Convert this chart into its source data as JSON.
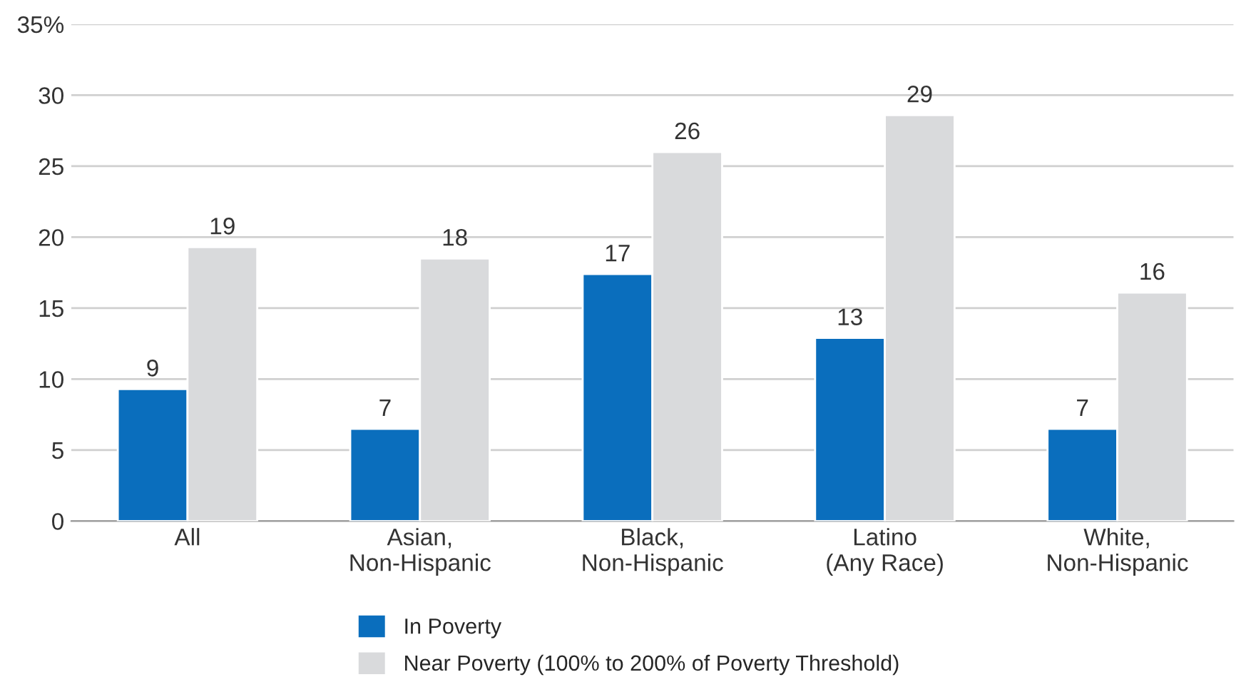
{
  "chart_data": {
    "type": "bar",
    "categories": [
      "All",
      "Asian,\nNon-Hispanic",
      "Black,\nNon-Hispanic",
      "Latino\n(Any Race)",
      "White,\nNon-Hispanic"
    ],
    "series": [
      {
        "name": "In Poverty",
        "color": "#0a6ebd",
        "values": [
          9.3,
          6.5,
          17.4,
          12.9,
          6.5
        ],
        "value_labels": [
          "9",
          "7",
          "17",
          "13",
          "7"
        ]
      },
      {
        "name": "Near Poverty (100% to 200% of Poverty Threshold)",
        "color": "#d9dadc",
        "values": [
          19.3,
          18.5,
          26.0,
          28.6,
          16.1
        ],
        "value_labels": [
          "19",
          "18",
          "26",
          "29",
          "16"
        ]
      }
    ],
    "ylim": [
      0,
      35
    ],
    "yticks": [
      0,
      5,
      10,
      15,
      20,
      25,
      30,
      {
        "value": 35,
        "label": "35%"
      }
    ],
    "grid": "y",
    "legend": "bottom"
  }
}
